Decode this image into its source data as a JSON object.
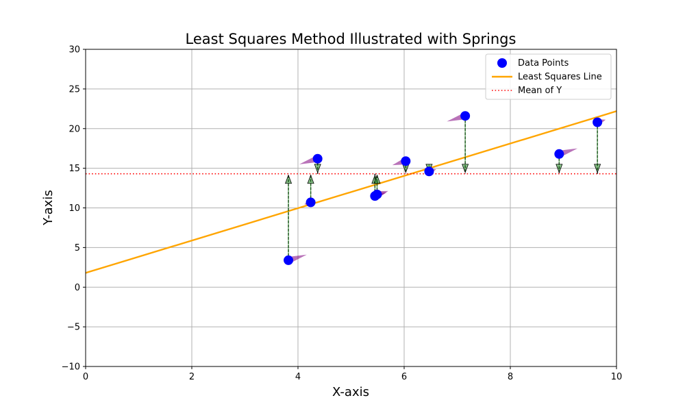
{
  "chart_data": {
    "type": "scatter",
    "title": "Least Squares Method Illustrated with Springs",
    "xlabel": "X-axis",
    "ylabel": "Y-axis",
    "xlim": [
      0,
      10
    ],
    "ylim": [
      -10,
      30
    ],
    "xticks": [
      0,
      2,
      4,
      6,
      8,
      10
    ],
    "yticks": [
      -10,
      -5,
      0,
      5,
      10,
      15,
      20,
      25,
      30
    ],
    "grid": true,
    "legend_position": "top-right",
    "series": [
      {
        "name": "Data Points",
        "kind": "scatter",
        "color": "#0000ff",
        "points": [
          {
            "x": 3.82,
            "y": 3.4
          },
          {
            "x": 4.24,
            "y": 10.7
          },
          {
            "x": 4.37,
            "y": 16.2
          },
          {
            "x": 5.45,
            "y": 11.5
          },
          {
            "x": 5.49,
            "y": 11.7
          },
          {
            "x": 6.03,
            "y": 15.9
          },
          {
            "x": 6.47,
            "y": 14.6
          },
          {
            "x": 7.15,
            "y": 21.6
          },
          {
            "x": 8.92,
            "y": 16.8
          },
          {
            "x": 9.64,
            "y": 20.8
          }
        ]
      },
      {
        "name": "Least Squares Line",
        "kind": "line",
        "color": "#ffa500",
        "style": "solid",
        "slope": 2.04,
        "intercept": 1.8
      },
      {
        "name": "Mean of Y",
        "kind": "hline",
        "color": "#ff0000",
        "style": "dotted",
        "y": 14.3
      }
    ],
    "springs": {
      "color": "#228b22",
      "to_y": 14.3
    },
    "residual_arrows": {
      "color": "#800080"
    }
  }
}
